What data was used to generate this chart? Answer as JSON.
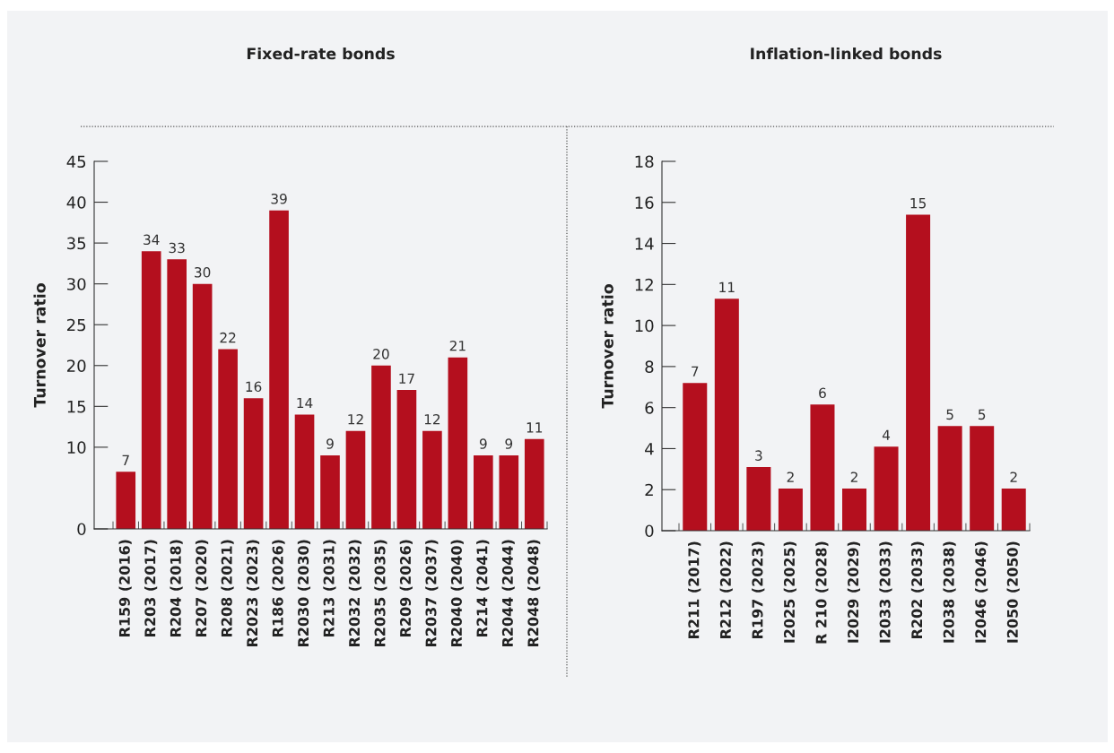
{
  "chart_data": [
    {
      "type": "bar",
      "title": "Fixed-rate bonds",
      "ylabel": "Turnover ratio",
      "color": "#b40f1e",
      "categories": [
        "R159 (2016)",
        "R203 (2017)",
        "R204 (2018)",
        "R207 (2020)",
        "R208 (2021)",
        "R2023 (2023)",
        "R186 (2026)",
        "R2030 (2030)",
        "R213 (2031)",
        "R2032 (2032)",
        "R2035 (2035)",
        "R209 (2026)",
        "R2037 (2037)",
        "R2040 (2040)",
        "R214 (2041)",
        "R2044 (2044)",
        "R2048 (2048)"
      ],
      "values": [
        7,
        34,
        33,
        30,
        22,
        16,
        39,
        14,
        9,
        12,
        20,
        17,
        12,
        21,
        9,
        9,
        11
      ],
      "data_labels": true,
      "ylim": [
        0,
        45
      ],
      "yticks": [
        0,
        10,
        15,
        20,
        25,
        30,
        35,
        40,
        45
      ]
    },
    {
      "type": "bar",
      "title": "Inflation-linked bonds",
      "ylabel": "Turnover ratio",
      "color": "#b40f1e",
      "categories": [
        "R211 (2017)",
        "R212 (2022)",
        "R197 (2023)",
        "I2025 (2025)",
        "R 210 (2028)",
        "I2029 (2029)",
        "I2033 (2033)",
        "R202 (2033)",
        "I2038 (2038)",
        "I2046 (2046)",
        "I2050 (2050)"
      ],
      "values": [
        7.2,
        11.3,
        3.1,
        2.05,
        6.15,
        2.05,
        4.1,
        15.4,
        5.1,
        5.1,
        2.05
      ],
      "value_labels": [
        "7",
        "11",
        "3",
        "2",
        "6",
        "2",
        "4",
        "15",
        "5",
        "5",
        "2"
      ],
      "ylim": [
        0,
        18
      ],
      "yticks": [
        0,
        2,
        4,
        6,
        8,
        10,
        12,
        14,
        16,
        18
      ]
    }
  ]
}
